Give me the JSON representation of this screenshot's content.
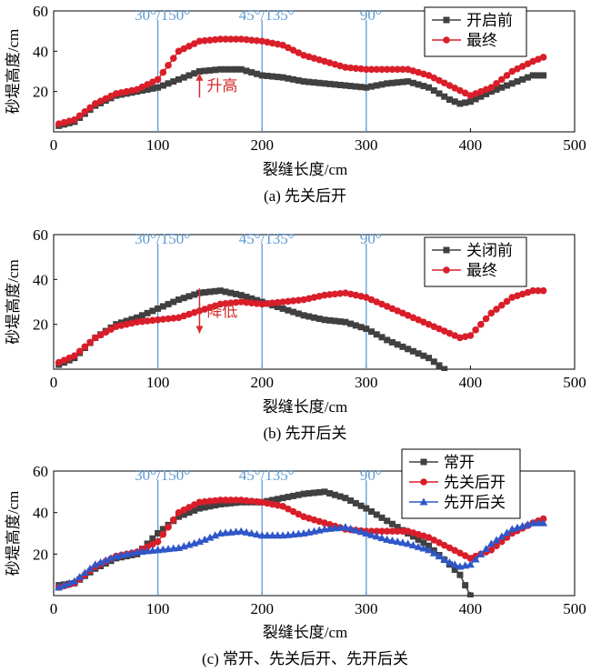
{
  "colors": {
    "black": "#404040",
    "red": "#d91e2a",
    "blue": "#2f57c9",
    "vline": "#5b9bd5",
    "annot": "#d52b2b"
  },
  "chart_data": [
    {
      "type": "line",
      "caption": "(a) 先关后开",
      "xlabel": "裂缝长度/cm",
      "ylabel": "砂堤高度/cm",
      "xlim": [
        0,
        500
      ],
      "ylim": [
        0,
        60
      ],
      "xticks": [
        "0",
        "100",
        "200",
        "300",
        "400",
        "500"
      ],
      "yticks": [
        "20",
        "40",
        "60"
      ],
      "vlines": [
        {
          "x": 100,
          "label": "30°/150°"
        },
        {
          "x": 200,
          "label": "45°/135°"
        },
        {
          "x": 300,
          "label": "90°"
        }
      ],
      "annotation": {
        "text": "升高",
        "arrow": "up",
        "x": 140,
        "y_from": 17,
        "y_to": 29
      },
      "legend_position": "top-right",
      "series": [
        {
          "name": "开启前",
          "color": "black",
          "marker": "square",
          "points": [
            [
              5,
              3
            ],
            [
              20,
              5
            ],
            [
              40,
              13
            ],
            [
              60,
              18
            ],
            [
              80,
              20
            ],
            [
              100,
              22
            ],
            [
              120,
              26
            ],
            [
              140,
              30
            ],
            [
              160,
              31
            ],
            [
              180,
              31
            ],
            [
              200,
              28
            ],
            [
              220,
              27
            ],
            [
              240,
              25
            ],
            [
              260,
              24
            ],
            [
              280,
              23
            ],
            [
              300,
              22
            ],
            [
              320,
              24
            ],
            [
              340,
              25
            ],
            [
              360,
              22
            ],
            [
              380,
              16
            ],
            [
              390,
              14
            ],
            [
              400,
              15
            ],
            [
              420,
              20
            ],
            [
              440,
              24
            ],
            [
              460,
              28
            ],
            [
              470,
              28
            ]
          ]
        },
        {
          "name": "最终",
          "color": "red",
          "marker": "circle",
          "points": [
            [
              5,
              4
            ],
            [
              20,
              6
            ],
            [
              40,
              14
            ],
            [
              60,
              19
            ],
            [
              80,
              21
            ],
            [
              100,
              26
            ],
            [
              120,
              40
            ],
            [
              140,
              45
            ],
            [
              160,
              46
            ],
            [
              180,
              46
            ],
            [
              200,
              45
            ],
            [
              220,
              43
            ],
            [
              240,
              38
            ],
            [
              260,
              35
            ],
            [
              280,
              32
            ],
            [
              300,
              31
            ],
            [
              320,
              31
            ],
            [
              340,
              31
            ],
            [
              360,
              28
            ],
            [
              380,
              23
            ],
            [
              400,
              18
            ],
            [
              420,
              22
            ],
            [
              440,
              30
            ],
            [
              460,
              35
            ],
            [
              470,
              37
            ]
          ]
        }
      ]
    },
    {
      "type": "line",
      "caption": "(b) 先开后关",
      "xlabel": "裂缝长度/cm",
      "ylabel": "砂堤高度/cm",
      "xlim": [
        0,
        500
      ],
      "ylim": [
        0,
        60
      ],
      "xticks": [
        "0",
        "100",
        "200",
        "300",
        "400",
        "500"
      ],
      "yticks": [
        "20",
        "40",
        "60"
      ],
      "vlines": [
        {
          "x": 100,
          "label": "30°/150°"
        },
        {
          "x": 200,
          "label": "45°/135°"
        },
        {
          "x": 300,
          "label": "90°"
        }
      ],
      "annotation": {
        "text": "降低",
        "arrow": "down",
        "x": 140,
        "y_from": 36,
        "y_to": 16
      },
      "legend_position": "top-right",
      "series": [
        {
          "name": "关闭前",
          "color": "black",
          "marker": "square",
          "points": [
            [
              5,
              2
            ],
            [
              20,
              5
            ],
            [
              40,
              14
            ],
            [
              60,
              20
            ],
            [
              80,
              23
            ],
            [
              100,
              27
            ],
            [
              120,
              31
            ],
            [
              140,
              34
            ],
            [
              160,
              35
            ],
            [
              180,
              33
            ],
            [
              200,
              30
            ],
            [
              220,
              27
            ],
            [
              240,
              24
            ],
            [
              260,
              22
            ],
            [
              280,
              21
            ],
            [
              300,
              18
            ],
            [
              320,
              13
            ],
            [
              340,
              9
            ],
            [
              360,
              5
            ],
            [
              375,
              0
            ]
          ]
        },
        {
          "name": "最终",
          "color": "red",
          "marker": "circle",
          "points": [
            [
              5,
              3
            ],
            [
              20,
              6
            ],
            [
              40,
              14
            ],
            [
              60,
              19
            ],
            [
              80,
              21
            ],
            [
              100,
              22
            ],
            [
              120,
              23
            ],
            [
              140,
              26
            ],
            [
              160,
              29
            ],
            [
              180,
              30
            ],
            [
              200,
              29
            ],
            [
              220,
              30
            ],
            [
              240,
              31
            ],
            [
              260,
              33
            ],
            [
              280,
              34
            ],
            [
              300,
              32
            ],
            [
              320,
              28
            ],
            [
              340,
              24
            ],
            [
              360,
              20
            ],
            [
              380,
              16
            ],
            [
              390,
              14
            ],
            [
              400,
              15
            ],
            [
              420,
              25
            ],
            [
              440,
              32
            ],
            [
              460,
              35
            ],
            [
              470,
              35
            ]
          ]
        }
      ]
    },
    {
      "type": "line",
      "caption": "(c) 常开、先关后开、先开后关",
      "xlabel": "裂缝长度/cm",
      "ylabel": "砂堤高度/cm",
      "xlim": [
        0,
        500
      ],
      "ylim": [
        0,
        60
      ],
      "xticks": [
        "0",
        "100",
        "200",
        "300",
        "400",
        "500"
      ],
      "yticks": [
        "20",
        "40",
        "60"
      ],
      "vlines": [
        {
          "x": 100,
          "label": "30°/150°"
        },
        {
          "x": 200,
          "label": "45°/135°"
        },
        {
          "x": 300,
          "label": "90°"
        }
      ],
      "legend_position": "top-right",
      "series": [
        {
          "name": "常开",
          "color": "black",
          "marker": "square",
          "points": [
            [
              5,
              5
            ],
            [
              20,
              6
            ],
            [
              40,
              13
            ],
            [
              60,
              18
            ],
            [
              80,
              20
            ],
            [
              100,
              30
            ],
            [
              120,
              38
            ],
            [
              140,
              42
            ],
            [
              160,
              44
            ],
            [
              180,
              45
            ],
            [
              200,
              45
            ],
            [
              220,
              47
            ],
            [
              240,
              49
            ],
            [
              260,
              50
            ],
            [
              280,
              47
            ],
            [
              300,
              42
            ],
            [
              320,
              36
            ],
            [
              340,
              30
            ],
            [
              360,
              24
            ],
            [
              380,
              15
            ],
            [
              390,
              10
            ],
            [
              400,
              0
            ]
          ]
        },
        {
          "name": "先关后开",
          "color": "red",
          "marker": "circle",
          "points": [
            [
              5,
              4
            ],
            [
              20,
              6
            ],
            [
              40,
              14
            ],
            [
              60,
              19
            ],
            [
              80,
              21
            ],
            [
              100,
              26
            ],
            [
              120,
              40
            ],
            [
              140,
              45
            ],
            [
              160,
              46
            ],
            [
              180,
              46
            ],
            [
              200,
              45
            ],
            [
              220,
              43
            ],
            [
              240,
              38
            ],
            [
              260,
              35
            ],
            [
              280,
              32
            ],
            [
              300,
              31
            ],
            [
              320,
              31
            ],
            [
              340,
              31
            ],
            [
              360,
              28
            ],
            [
              380,
              23
            ],
            [
              400,
              18
            ],
            [
              420,
              22
            ],
            [
              440,
              30
            ],
            [
              460,
              35
            ],
            [
              470,
              37
            ]
          ]
        },
        {
          "name": "先开后关",
          "color": "blue",
          "marker": "triangle",
          "points": [
            [
              5,
              4
            ],
            [
              20,
              7
            ],
            [
              40,
              15
            ],
            [
              60,
              19
            ],
            [
              80,
              21
            ],
            [
              100,
              22
            ],
            [
              120,
              23
            ],
            [
              140,
              26
            ],
            [
              160,
              30
            ],
            [
              180,
              31
            ],
            [
              200,
              29
            ],
            [
              220,
              29
            ],
            [
              240,
              30
            ],
            [
              260,
              32
            ],
            [
              280,
              33
            ],
            [
              300,
              30
            ],
            [
              320,
              27
            ],
            [
              340,
              25
            ],
            [
              360,
              22
            ],
            [
              380,
              16
            ],
            [
              390,
              14
            ],
            [
              400,
              15
            ],
            [
              420,
              25
            ],
            [
              440,
              32
            ],
            [
              460,
              35
            ],
            [
              470,
              35
            ]
          ]
        }
      ]
    }
  ]
}
